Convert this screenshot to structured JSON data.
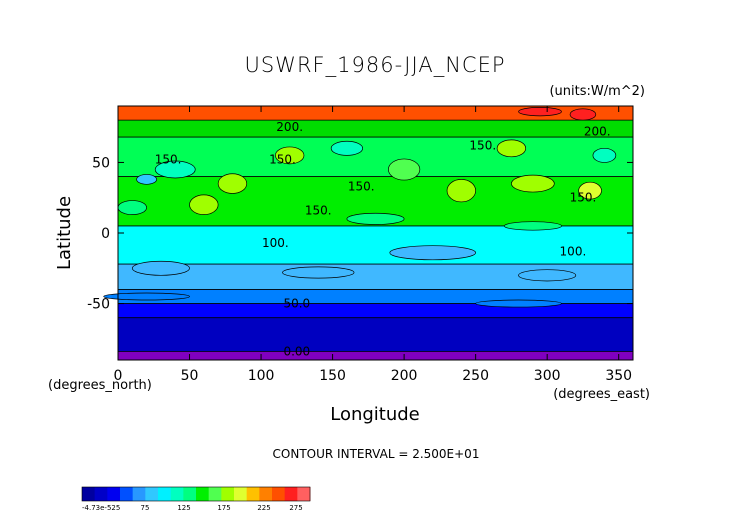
{
  "chart_data": {
    "type": "heatmap",
    "title": "USWRF_1986-JJA_NCEP",
    "units": "(units:W/m^2)",
    "xlabel": "Longitude",
    "ylabel": "Latitude",
    "x_unit_note": "(degrees_east)",
    "y_unit_note": "(degrees_north)",
    "xlim": [
      0,
      360
    ],
    "ylim": [
      -90,
      90
    ],
    "x_ticks": [
      0,
      50,
      100,
      150,
      200,
      250,
      300,
      350
    ],
    "y_ticks": [
      -50,
      0,
      50
    ],
    "contour_interval_text": "CONTOUR INTERVAL = 2.500E+01",
    "contour_labels": [
      {
        "text": "200.",
        "lon": 120,
        "lat": 75
      },
      {
        "text": "200.",
        "lon": 335,
        "lat": 72
      },
      {
        "text": "150.",
        "lon": 35,
        "lat": 52
      },
      {
        "text": "150.",
        "lon": 115,
        "lat": 52
      },
      {
        "text": "150.",
        "lon": 170,
        "lat": 33
      },
      {
        "text": "150.",
        "lon": 255,
        "lat": 62
      },
      {
        "text": "150.",
        "lon": 325,
        "lat": 25
      },
      {
        "text": "150.",
        "lon": 140,
        "lat": 16
      },
      {
        "text": "100.",
        "lon": 110,
        "lat": -7
      },
      {
        "text": "100.",
        "lon": 318,
        "lat": -13
      },
      {
        "text": "50.0",
        "lon": 125,
        "lat": -50
      },
      {
        "text": "0.00",
        "lon": 125,
        "lat": -84
      }
    ],
    "colorbar": {
      "tick_labels": [
        "-4.73e-525",
        "75",
        "125",
        "175",
        "225",
        "275"
      ],
      "colors": [
        "#0000a0",
        "#0000c8",
        "#0000f0",
        "#0050ff",
        "#2898ff",
        "#30c8ff",
        "#00f0ff",
        "#00ffc0",
        "#00ff80",
        "#00f000",
        "#50ff50",
        "#a0ff00",
        "#e0ff30",
        "#ffc000",
        "#ff8000",
        "#ff5000",
        "#ff2020",
        "#ff6060"
      ]
    },
    "bands": [
      {
        "lat_top": 90,
        "lat_bottom": 80,
        "color": "#ff5000"
      },
      {
        "lat_top": 80,
        "lat_bottom": 68,
        "color": "#00dd00"
      },
      {
        "lat_top": 68,
        "lat_bottom": 40,
        "color": "#00ff55"
      },
      {
        "lat_top": 40,
        "lat_bottom": 5,
        "color": "#00ee00"
      },
      {
        "lat_top": 5,
        "lat_bottom": -22,
        "color": "#00ffff"
      },
      {
        "lat_top": -22,
        "lat_bottom": -40,
        "color": "#40b8ff"
      },
      {
        "lat_top": -40,
        "lat_bottom": -50,
        "color": "#0080ff"
      },
      {
        "lat_top": -50,
        "lat_bottom": -60,
        "color": "#0000ff"
      },
      {
        "lat_top": -60,
        "lat_bottom": -84,
        "color": "#0000c0"
      },
      {
        "lat_top": -84,
        "lat_bottom": -90,
        "color": "#8000c0"
      }
    ],
    "patches": [
      {
        "lon": 295,
        "lat": 86,
        "w": 30,
        "h": 6,
        "color": "#ff2020"
      },
      {
        "lon": 325,
        "lat": 84,
        "w": 18,
        "h": 8,
        "color": "#ff2020"
      },
      {
        "lon": 40,
        "lat": 45,
        "w": 28,
        "h": 12,
        "color": "#00ffc0"
      },
      {
        "lon": 20,
        "lat": 38,
        "w": 14,
        "h": 7,
        "color": "#30c8ff"
      },
      {
        "lon": 80,
        "lat": 35,
        "w": 20,
        "h": 14,
        "color": "#a0ff00"
      },
      {
        "lon": 60,
        "lat": 20,
        "w": 20,
        "h": 14,
        "color": "#a0ff00"
      },
      {
        "lon": 120,
        "lat": 55,
        "w": 20,
        "h": 12,
        "color": "#a0ff00"
      },
      {
        "lon": 160,
        "lat": 60,
        "w": 22,
        "h": 10,
        "color": "#00ffc0"
      },
      {
        "lon": 200,
        "lat": 45,
        "w": 22,
        "h": 15,
        "color": "#50ff50"
      },
      {
        "lon": 240,
        "lat": 30,
        "w": 20,
        "h": 16,
        "color": "#a0ff00"
      },
      {
        "lon": 275,
        "lat": 60,
        "w": 20,
        "h": 12,
        "color": "#a0ff00"
      },
      {
        "lon": 290,
        "lat": 35,
        "w": 30,
        "h": 12,
        "color": "#a0ff00"
      },
      {
        "lon": 330,
        "lat": 30,
        "w": 16,
        "h": 12,
        "color": "#e0ff30"
      },
      {
        "lon": 340,
        "lat": 55,
        "w": 16,
        "h": 10,
        "color": "#00ffc0"
      },
      {
        "lon": 10,
        "lat": 18,
        "w": 20,
        "h": 10,
        "color": "#00ff80"
      },
      {
        "lon": 180,
        "lat": 10,
        "w": 40,
        "h": 8,
        "color": "#00ff80"
      },
      {
        "lon": 290,
        "lat": 5,
        "w": 40,
        "h": 6,
        "color": "#00ff80"
      },
      {
        "lon": 220,
        "lat": -14,
        "w": 60,
        "h": 10,
        "color": "#40b8ff"
      },
      {
        "lon": 30,
        "lat": -25,
        "w": 40,
        "h": 10,
        "color": "#40b8ff"
      },
      {
        "lon": 140,
        "lat": -28,
        "w": 50,
        "h": 8,
        "color": "#40b8ff"
      },
      {
        "lon": 300,
        "lat": -30,
        "w": 40,
        "h": 8,
        "color": "#40b8ff"
      },
      {
        "lon": 20,
        "lat": -45,
        "w": 60,
        "h": 5,
        "color": "#0080ff"
      },
      {
        "lon": 280,
        "lat": -50,
        "w": 60,
        "h": 5,
        "color": "#0080ff"
      }
    ]
  }
}
